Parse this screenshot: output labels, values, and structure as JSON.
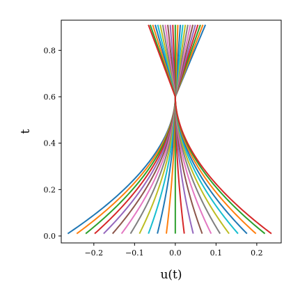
{
  "chart_data": {
    "type": "line",
    "title": "",
    "xlabel": "u(t)",
    "ylabel": "t",
    "xlim": [
      -0.28,
      0.26
    ],
    "ylim": [
      -0.03,
      0.93
    ],
    "xticks": [
      -0.2,
      -0.1,
      0.0,
      0.1,
      0.2
    ],
    "xtick_labels": [
      "−0.2",
      "−0.1",
      "0.0",
      "0.1",
      "0.2"
    ],
    "yticks": [
      0.0,
      0.2,
      0.4,
      0.6,
      0.8
    ],
    "ytick_labels": [
      "0.0",
      "0.2",
      "0.4",
      "0.6",
      "0.8"
    ],
    "grid": false,
    "legend": "none",
    "convergence_point": {
      "u": 0.0,
      "t": 0.6
    },
    "t_start": 0.01,
    "t_end": 0.91,
    "series_u0": [
      -0.264,
      -0.242,
      -0.22,
      -0.198,
      -0.176,
      -0.154,
      -0.132,
      -0.11,
      -0.088,
      -0.066,
      -0.044,
      -0.022,
      0.0,
      0.022,
      0.044,
      0.066,
      0.088,
      0.11,
      0.132,
      0.154,
      0.176,
      0.198,
      0.22,
      0.236
    ],
    "colors": [
      "#1f77b4",
      "#ff7f0e",
      "#2ca02c",
      "#d62728",
      "#9467bd",
      "#8c564b",
      "#e377c2",
      "#7f7f7f",
      "#bcbd22",
      "#17becf"
    ]
  }
}
